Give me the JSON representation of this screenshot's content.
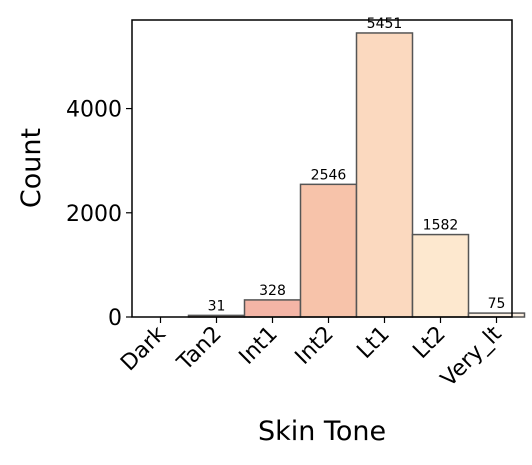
{
  "chart_data": {
    "type": "bar",
    "title": "",
    "xlabel": "Skin Tone",
    "ylabel": "Count",
    "categories": [
      "Dark",
      "Tan2",
      "Int1",
      "Int2",
      "Lt1",
      "Lt2",
      "Very_lt"
    ],
    "values": [
      0,
      31,
      328,
      2546,
      5451,
      1582,
      75
    ],
    "data_labels": [
      "",
      "31",
      "328",
      "2546",
      "5451",
      "1582",
      "75"
    ],
    "bar_colors": [
      "#7a2a1e",
      "#e4a08f",
      "#f4b5a6",
      "#f7c3aa",
      "#fbd9bf",
      "#fde8cf",
      "#fdf0e2"
    ],
    "bar_edge_color": "#555555",
    "ylim": [
      0,
      5700
    ],
    "yticks": [
      0,
      2000,
      4000
    ],
    "ytick_labels": [
      "0",
      "2000",
      "4000"
    ],
    "grid": false,
    "legend": "none"
  }
}
